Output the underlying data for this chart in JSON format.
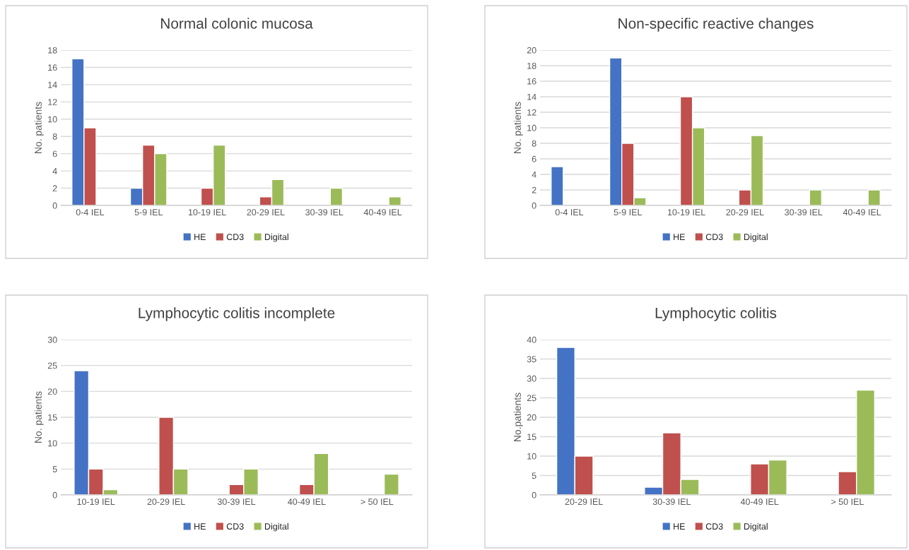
{
  "chart_data": [
    {
      "type": "bar",
      "title": "Normal colonic mucosa",
      "ylabel": "No. patients",
      "categories": [
        "0-4 IEL",
        "5-9 IEL",
        "10-19 IEL",
        "20-29 IEL",
        "30-39 IEL",
        "40-49 IEL"
      ],
      "series": [
        {
          "name": "HE",
          "color": "#4472c4",
          "values": [
            17,
            2,
            null,
            null,
            null,
            null
          ]
        },
        {
          "name": "CD3",
          "color": "#c0504d",
          "values": [
            9,
            7,
            2,
            1,
            null,
            null
          ]
        },
        {
          "name": "Digital",
          "color": "#9bbb59",
          "values": [
            null,
            6,
            7,
            3,
            2,
            1
          ]
        }
      ],
      "ylim": [
        0,
        18
      ],
      "yticks": [
        0,
        2,
        4,
        6,
        8,
        10,
        12,
        14,
        16,
        18
      ],
      "grid": "y",
      "legend": "bottom"
    },
    {
      "type": "bar",
      "title": "Non-specific reactive changes",
      "ylabel": "No. patients",
      "categories": [
        "0-4 IEL",
        "5-9 IEL",
        "10-19 IEL",
        "20-29 IEL",
        "30-39 IEL",
        "40-49 IEL"
      ],
      "series": [
        {
          "name": "HE",
          "color": "#4472c4",
          "values": [
            5,
            19,
            null,
            null,
            null,
            null
          ]
        },
        {
          "name": "CD3",
          "color": "#c0504d",
          "values": [
            null,
            8,
            14,
            2,
            null,
            null
          ]
        },
        {
          "name": "Digital",
          "color": "#9bbb59",
          "values": [
            null,
            1,
            10,
            9,
            2,
            2
          ]
        }
      ],
      "ylim": [
        0,
        20
      ],
      "yticks": [
        0,
        2,
        4,
        6,
        8,
        10,
        12,
        14,
        16,
        18,
        20
      ],
      "grid": "y",
      "legend": "bottom"
    },
    {
      "type": "bar",
      "title": "Lymphocytic colitis incomplete",
      "ylabel": "No. patients",
      "categories": [
        "10-19 IEL",
        "20-29 IEL",
        "30-39 IEL",
        "40-49 IEL",
        "> 50 IEL"
      ],
      "series": [
        {
          "name": "HE",
          "color": "#4472c4",
          "values": [
            24,
            null,
            null,
            null,
            null
          ]
        },
        {
          "name": "CD3",
          "color": "#c0504d",
          "values": [
            5,
            15,
            2,
            2,
            null
          ]
        },
        {
          "name": "Digital",
          "color": "#9bbb59",
          "values": [
            1,
            5,
            5,
            8,
            4
          ]
        }
      ],
      "ylim": [
        0,
        30
      ],
      "yticks": [
        0,
        5,
        10,
        15,
        20,
        25,
        30
      ],
      "grid": "y",
      "legend": "bottom"
    },
    {
      "type": "bar",
      "title": "Lymphocytic colitis",
      "ylabel": "No.patients",
      "categories": [
        "20-29 IEL",
        "30-39 IEL",
        "40-49 IEL",
        "> 50 IEL"
      ],
      "series": [
        {
          "name": "HE",
          "color": "#4472c4",
          "values": [
            38,
            2,
            null,
            null
          ]
        },
        {
          "name": "CD3",
          "color": "#c0504d",
          "values": [
            10,
            16,
            8,
            6
          ]
        },
        {
          "name": "Digital",
          "color": "#9bbb59",
          "values": [
            null,
            4,
            9,
            27
          ]
        }
      ],
      "ylim": [
        0,
        40
      ],
      "yticks": [
        0,
        5,
        10,
        15,
        20,
        25,
        30,
        35,
        40
      ],
      "grid": "y",
      "legend": "bottom"
    }
  ]
}
